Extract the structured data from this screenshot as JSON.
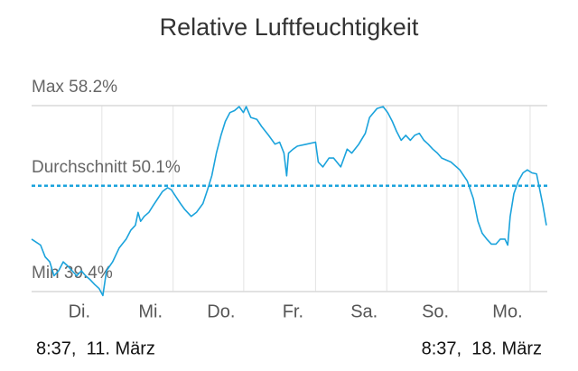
{
  "chart_data": {
    "type": "line",
    "title": "Relative Luftfeuchtigkeit",
    "color": "#1ba3dc",
    "ylim": [
      39.4,
      58.2
    ],
    "yticks": [
      {
        "value": 58.2,
        "label": "Max 58.2%"
      },
      {
        "value": 50.1,
        "label": "Durchschnitt 50.1%"
      },
      {
        "value": 39.4,
        "label": "Min 39.4%"
      }
    ],
    "xlim": [
      0,
      168
    ],
    "xticks": [
      {
        "value": 22.9,
        "label": "Di."
      },
      {
        "value": 46.1,
        "label": "Mi."
      },
      {
        "value": 69.1,
        "label": "Do."
      },
      {
        "value": 92.5,
        "label": "Fr."
      },
      {
        "value": 115.7,
        "label": "Sa."
      },
      {
        "value": 138.9,
        "label": "So."
      },
      {
        "value": 162.4,
        "label": "Mo."
      }
    ],
    "start_label": "8:37,  11. März",
    "end_label": "8:37,  18. März",
    "x": [
      0,
      2.9,
      4.4,
      5.9,
      7.3,
      8.8,
      10.3,
      11.7,
      13.2,
      14.7,
      16.2,
      17.6,
      19.1,
      20.6,
      22.0,
      23.2,
      24.4,
      26.4,
      28.5,
      30.8,
      32.3,
      33.8,
      34.7,
      35.5,
      36.7,
      38.2,
      39.6,
      41.1,
      42.6,
      44.3,
      45.5,
      47.0,
      48.5,
      49.9,
      52.0,
      53.7,
      55.8,
      57.3,
      58.7,
      60.2,
      61.7,
      63.1,
      64.6,
      66.1,
      67.6,
      69.0,
      69.9,
      71.4,
      73.4,
      74.9,
      77.2,
      79.3,
      80.8,
      82.2,
      83.1,
      83.7,
      85.2,
      86.6,
      89.6,
      92.5,
      93.4,
      94.9,
      96.9,
      98.4,
      100.7,
      102.8,
      104.3,
      106.6,
      108.7,
      110.1,
      112.5,
      114.5,
      116.0,
      117.5,
      118.9,
      120.4,
      121.9,
      123.4,
      124.8,
      126.3,
      127.8,
      129.2,
      130.7,
      132.2,
      133.6,
      136.6,
      139.5,
      141.9,
      143.9,
      145.4,
      146.8,
      148.3,
      149.8,
      151.3,
      152.7,
      154.2,
      155.1,
      155.9,
      157.1,
      158.6,
      160.1,
      161.5,
      163.0,
      164.5,
      165.4,
      166.6,
      167.7
    ],
    "values": [
      44.7,
      44.1,
      42.9,
      42.4,
      41.0,
      41.5,
      42.4,
      42.0,
      41.5,
      41.0,
      41.5,
      41.0,
      40.6,
      40.1,
      39.7,
      39.0,
      41.5,
      42.4,
      43.8,
      44.7,
      45.6,
      46.1,
      47.4,
      46.5,
      47.0,
      47.4,
      48.1,
      48.8,
      49.5,
      49.9,
      49.7,
      49.0,
      48.3,
      47.7,
      47.0,
      47.4,
      48.3,
      49.7,
      51.1,
      53.4,
      55.2,
      56.6,
      57.5,
      57.7,
      58.1,
      57.5,
      58.1,
      57.0,
      56.8,
      56.1,
      55.2,
      54.3,
      54.5,
      53.4,
      51.1,
      53.4,
      53.8,
      54.1,
      54.3,
      54.5,
      52.5,
      52.0,
      52.9,
      52.9,
      52.0,
      53.8,
      53.4,
      54.3,
      55.4,
      57.0,
      57.9,
      58.1,
      57.5,
      56.6,
      55.6,
      54.7,
      55.2,
      54.7,
      55.2,
      55.4,
      54.7,
      54.3,
      53.8,
      53.4,
      52.9,
      52.5,
      51.7,
      50.6,
      48.8,
      46.5,
      45.3,
      44.7,
      44.2,
      44.2,
      44.7,
      44.7,
      44.1,
      47.0,
      49.3,
      50.6,
      51.4,
      51.7,
      51.4,
      51.3,
      49.9,
      48.1,
      46.1
    ]
  }
}
